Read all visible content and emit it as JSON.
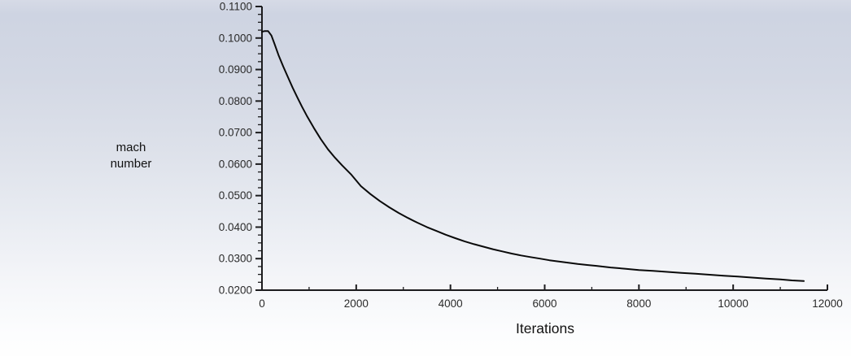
{
  "chart": {
    "ylabel_lines": [
      "mach",
      "number"
    ],
    "xlabel": "Iterations"
  },
  "chart_data": {
    "type": "line",
    "title": "",
    "xlabel": "Iterations",
    "ylabel": "mach number",
    "xlim": [
      0,
      12000
    ],
    "ylim": [
      0.02,
      0.11
    ],
    "grid": false,
    "legend": false,
    "x_tick_values": [
      0,
      2000,
      4000,
      6000,
      8000,
      10000,
      12000
    ],
    "x_tick_labels": [
      "0",
      "2000",
      "4000",
      "6000",
      "8000",
      "10000",
      "12000"
    ],
    "x_minor_divisions": 2,
    "y_tick_values": [
      0.02,
      0.03,
      0.04,
      0.05,
      0.06,
      0.07,
      0.08,
      0.09,
      0.1,
      0.11
    ],
    "y_tick_labels": [
      "0.0200",
      "0.0300",
      "0.0400",
      "0.0500",
      "0.0600",
      "0.0700",
      "0.0800",
      "0.0900",
      "0.1000",
      "0.1100"
    ],
    "y_minor_divisions": 4,
    "line_color": "#0a0a0a",
    "axis_color": "#1c1c1e",
    "tick_label_color": "#2b2b2b",
    "background_top_color": "#d2d7e4",
    "background_bottom_color": "#fefefe",
    "series": [
      {
        "name": "mach number",
        "x": [
          0,
          60,
          130,
          200,
          270,
          350,
          450,
          550,
          650,
          750,
          850,
          950,
          1100,
          1250,
          1400,
          1550,
          1700,
          1900,
          2100,
          2300,
          2500,
          2700,
          2900,
          3100,
          3300,
          3500,
          3700,
          3900,
          4100,
          4300,
          4500,
          4700,
          4900,
          5100,
          5300,
          5500,
          5700,
          5900,
          6100,
          6300,
          6500,
          6700,
          6900,
          7100,
          7400,
          7700,
          8000,
          8300,
          8600,
          8900,
          9200,
          9500,
          9800,
          10100,
          10400,
          10700,
          11000,
          11250,
          11500
        ],
        "y": [
          0.102,
          0.1022,
          0.1022,
          0.1008,
          0.098,
          0.0946,
          0.091,
          0.0876,
          0.0843,
          0.0812,
          0.0782,
          0.0754,
          0.0715,
          0.0679,
          0.0647,
          0.062,
          0.0596,
          0.0566,
          0.053,
          0.0505,
          0.0483,
          0.0463,
          0.0445,
          0.0429,
          0.0414,
          0.04,
          0.0388,
          0.0376,
          0.0365,
          0.0355,
          0.0346,
          0.0338,
          0.033,
          0.0323,
          0.0316,
          0.031,
          0.0305,
          0.03,
          0.0295,
          0.0291,
          0.0287,
          0.0283,
          0.028,
          0.0277,
          0.0272,
          0.0268,
          0.0264,
          0.0261,
          0.0258,
          0.0255,
          0.0252,
          0.0249,
          0.0246,
          0.0243,
          0.024,
          0.0237,
          0.0234,
          0.0231,
          0.0229
        ]
      }
    ]
  }
}
